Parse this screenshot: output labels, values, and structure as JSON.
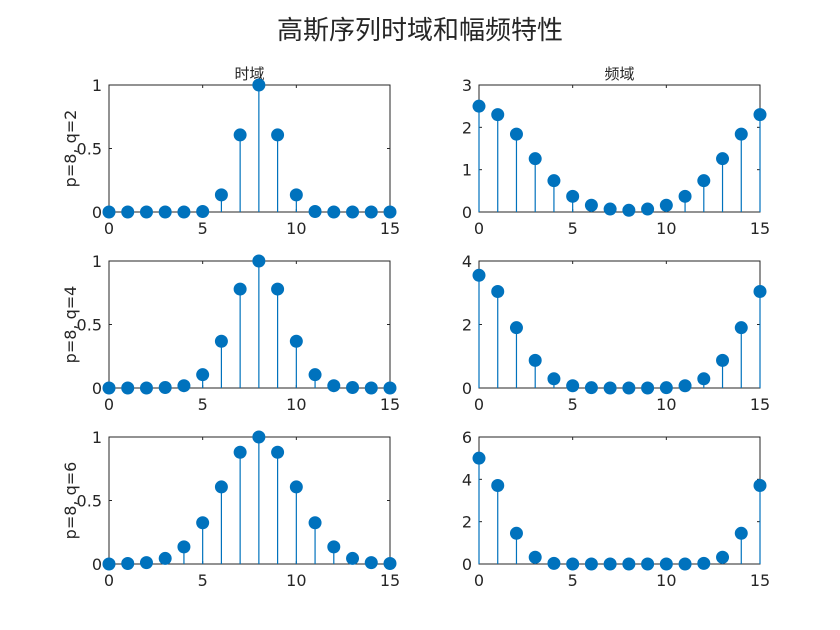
{
  "figure": {
    "title": "高斯序列时域和幅频特性",
    "stem_color": "#0072BD",
    "axis_color": "#262626"
  },
  "chart_data": [
    {
      "type": "stem",
      "title": "时域",
      "ylabel": "p=8, q=2",
      "xlim": [
        0,
        15
      ],
      "ylim": [
        0,
        1
      ],
      "xticks": [
        "0",
        "5",
        "10",
        "15"
      ],
      "yticks": [
        "0",
        "0.5",
        "1"
      ],
      "x": [
        0,
        1,
        2,
        3,
        4,
        5,
        6,
        7,
        8,
        9,
        10,
        11,
        12,
        13,
        14,
        15
      ],
      "values": [
        0,
        0,
        0,
        0,
        0,
        0.004,
        0.135,
        0.607,
        1,
        0.607,
        0.135,
        0.004,
        0,
        0,
        0,
        0
      ]
    },
    {
      "type": "stem",
      "title": "频域",
      "ylabel": "",
      "xlim": [
        0,
        15
      ],
      "ylim": [
        0,
        3
      ],
      "xticks": [
        "0",
        "5",
        "10",
        "15"
      ],
      "yticks": [
        "0",
        "1",
        "2",
        "3"
      ],
      "x": [
        0,
        1,
        2,
        3,
        4,
        5,
        6,
        7,
        8,
        9,
        10,
        11,
        12,
        13,
        14,
        15
      ],
      "values": [
        2.5,
        2.3,
        1.84,
        1.26,
        0.74,
        0.37,
        0.16,
        0.07,
        0.04,
        0.07,
        0.16,
        0.37,
        0.74,
        1.26,
        1.84,
        2.3
      ]
    },
    {
      "type": "stem",
      "title": "",
      "ylabel": "p=8, q=4",
      "xlim": [
        0,
        15
      ],
      "ylim": [
        0,
        1
      ],
      "xticks": [
        "0",
        "5",
        "10",
        "15"
      ],
      "yticks": [
        "0",
        "0.5",
        "1"
      ],
      "x": [
        0,
        1,
        2,
        3,
        4,
        5,
        6,
        7,
        8,
        9,
        10,
        11,
        12,
        13,
        14,
        15
      ],
      "values": [
        0,
        0,
        0,
        0.004,
        0.018,
        0.105,
        0.368,
        0.779,
        1,
        0.779,
        0.368,
        0.105,
        0.018,
        0.004,
        0,
        0
      ]
    },
    {
      "type": "stem",
      "title": "",
      "ylabel": "",
      "xlim": [
        0,
        15
      ],
      "ylim": [
        0,
        4
      ],
      "xticks": [
        "0",
        "5",
        "10",
        "15"
      ],
      "yticks": [
        "0",
        "2",
        "4"
      ],
      "x": [
        0,
        1,
        2,
        3,
        4,
        5,
        6,
        7,
        8,
        9,
        10,
        11,
        12,
        13,
        14,
        15
      ],
      "values": [
        3.55,
        3.04,
        1.9,
        0.87,
        0.29,
        0.07,
        0.01,
        0,
        0,
        0,
        0.01,
        0.07,
        0.29,
        0.87,
        1.9,
        3.04
      ]
    },
    {
      "type": "stem",
      "title": "",
      "ylabel": "p=8, q=6",
      "xlim": [
        0,
        15
      ],
      "ylim": [
        0,
        1
      ],
      "xticks": [
        "0",
        "5",
        "10",
        "15"
      ],
      "yticks": [
        "0",
        "0.5",
        "1"
      ],
      "x": [
        0,
        1,
        2,
        3,
        4,
        5,
        6,
        7,
        8,
        9,
        10,
        11,
        12,
        13,
        14,
        15
      ],
      "values": [
        0,
        0.004,
        0.011,
        0.044,
        0.135,
        0.325,
        0.607,
        0.88,
        1,
        0.88,
        0.607,
        0.325,
        0.135,
        0.044,
        0.011,
        0.004
      ]
    },
    {
      "type": "stem",
      "title": "",
      "ylabel": "",
      "xlim": [
        0,
        15
      ],
      "ylim": [
        0,
        6
      ],
      "xticks": [
        "0",
        "5",
        "10",
        "15"
      ],
      "yticks": [
        "0",
        "2",
        "4",
        "6"
      ],
      "x": [
        0,
        1,
        2,
        3,
        4,
        5,
        6,
        7,
        8,
        9,
        10,
        11,
        12,
        13,
        14,
        15
      ],
      "values": [
        5.0,
        3.71,
        1.45,
        0.32,
        0.03,
        0,
        0,
        0,
        0,
        0,
        0,
        0,
        0.03,
        0.32,
        1.45,
        3.71
      ]
    }
  ]
}
